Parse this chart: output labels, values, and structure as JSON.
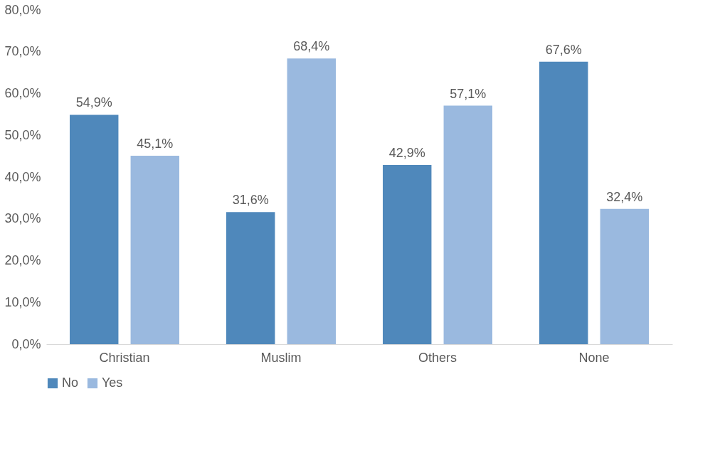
{
  "chart_data": {
    "type": "bar",
    "categories": [
      "Christian",
      "Muslim",
      "Others",
      "None"
    ],
    "series": [
      {
        "name": "No",
        "color": "#4f88bb",
        "values": [
          54.9,
          31.6,
          42.9,
          67.6
        ],
        "value_labels": [
          "54,9%",
          "31,6%",
          "42,9%",
          "67,6%"
        ]
      },
      {
        "name": "Yes",
        "color": "#9ab9df",
        "values": [
          45.1,
          68.4,
          57.1,
          32.4
        ],
        "value_labels": [
          "45,1%",
          "68,4%",
          "57,1%",
          "32,4%"
        ]
      }
    ],
    "ylim": [
      0,
      80
    ],
    "yticks": [
      {
        "value": 0,
        "label": "0,0%"
      },
      {
        "value": 10,
        "label": "10,0%"
      },
      {
        "value": 20,
        "label": "20,0%"
      },
      {
        "value": 30,
        "label": "30,0%"
      },
      {
        "value": 40,
        "label": "40,0%"
      },
      {
        "value": 50,
        "label": "50,0%"
      },
      {
        "value": 60,
        "label": "60,0%"
      },
      {
        "value": 70,
        "label": "70,0%"
      },
      {
        "value": 80,
        "label": "80,0%"
      }
    ],
    "grid": false,
    "legend": "bottom"
  }
}
